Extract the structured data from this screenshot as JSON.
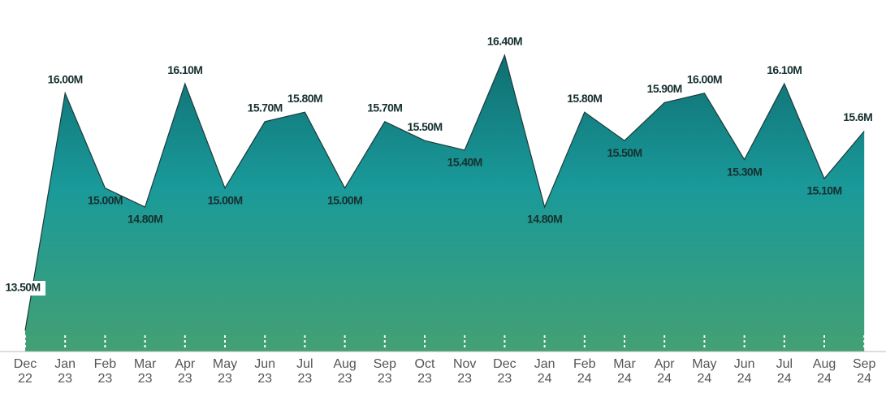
{
  "chart_data": {
    "type": "area",
    "categories": [
      "Dec 22",
      "Jan 23",
      "Feb 23",
      "Mar 23",
      "Apr 23",
      "May 23",
      "Jun 23",
      "Jul 23",
      "Aug 23",
      "Sep 23",
      "Oct 23",
      "Nov 23",
      "Dec 23",
      "Jan 24",
      "Feb 24",
      "Mar 24",
      "Apr 24",
      "May 24",
      "Jun 24",
      "Jul 24",
      "Aug 24",
      "Sep 24"
    ],
    "values": [
      13.5,
      16.0,
      15.0,
      14.8,
      16.1,
      15.0,
      15.7,
      15.8,
      15.0,
      15.7,
      15.5,
      15.4,
      16.4,
      14.8,
      15.8,
      15.5,
      15.9,
      16.0,
      15.3,
      16.1,
      15.1,
      15.6
    ],
    "value_labels": [
      "13.50M",
      "16.00M",
      "15.00M",
      "14.80M",
      "16.10M",
      "15.00M",
      "15.70M",
      "15.80M",
      "15.00M",
      "15.70M",
      "15.50M",
      "15.40M",
      "16.40M",
      "14.80M",
      "15.80M",
      "15.50M",
      "15.90M",
      "16.00M",
      "15.30M",
      "16.10M",
      "15.10M",
      "15.6M"
    ],
    "color": "#1a9a9a"
  }
}
